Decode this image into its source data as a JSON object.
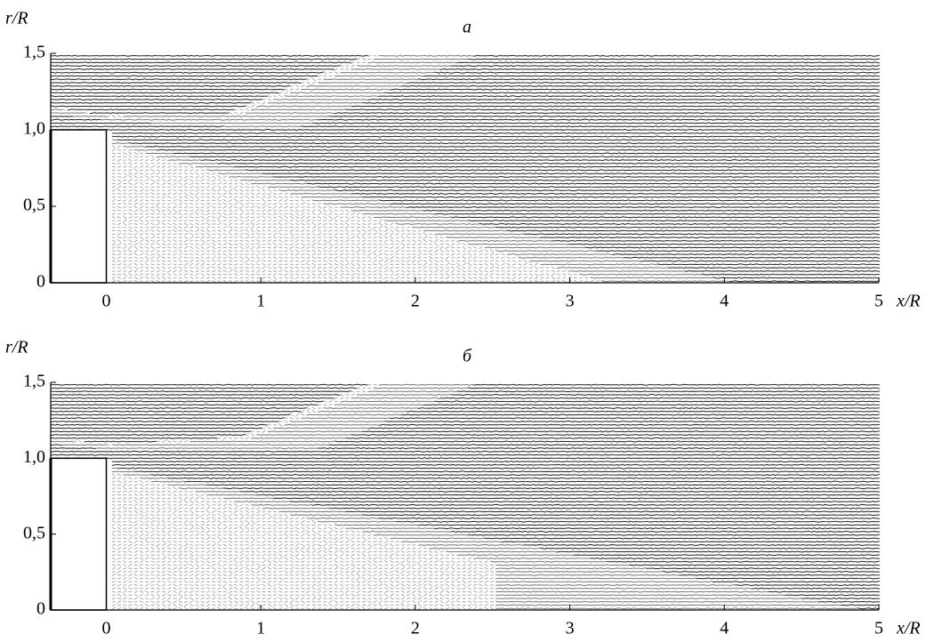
{
  "chart_data": [
    {
      "type": "quiver",
      "title": "а",
      "xlabel": "x/R",
      "ylabel": "r/R",
      "xlim": [
        -0.36,
        5
      ],
      "ylim": [
        0,
        1.5
      ],
      "xticks": [
        0,
        1,
        2,
        3,
        4,
        5
      ],
      "yticks": [
        0,
        {
          "value": 0.5,
          "label": "0,5"
        },
        {
          "value": 1.0,
          "label": "1,0"
        },
        {
          "value": 1.5,
          "label": "1,5"
        }
      ]
    },
    {
      "type": "quiver",
      "title": "б",
      "xlabel": "x/R",
      "ylabel": "r/R",
      "xlim": [
        -0.36,
        5
      ],
      "ylim": [
        0,
        1.5
      ],
      "xticks": [
        0,
        1,
        2,
        3,
        4,
        5
      ],
      "yticks": [
        0,
        {
          "value": 0.5,
          "label": "0,5"
        },
        {
          "value": 1.0,
          "label": "1,0"
        },
        {
          "value": 1.5,
          "label": "1,5"
        }
      ]
    }
  ]
}
